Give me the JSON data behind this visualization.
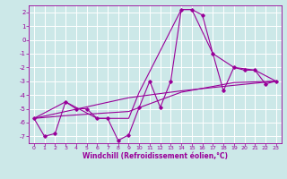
{
  "xlabel": "Windchill (Refroidissement éolien,°C)",
  "background_color": "#cce8e8",
  "grid_color": "#ffffff",
  "line_color": "#990099",
  "xlim": [
    -0.5,
    23.5
  ],
  "ylim": [
    -7.5,
    2.5
  ],
  "yticks": [
    2,
    1,
    0,
    -1,
    -2,
    -3,
    -4,
    -5,
    -6,
    -7
  ],
  "xticks": [
    0,
    1,
    2,
    3,
    4,
    5,
    6,
    7,
    8,
    9,
    10,
    11,
    12,
    13,
    14,
    15,
    16,
    17,
    18,
    19,
    20,
    21,
    22,
    23
  ],
  "main_x": [
    0,
    1,
    2,
    3,
    4,
    5,
    6,
    7,
    8,
    9,
    10,
    11,
    12,
    13,
    14,
    15,
    16,
    17,
    18,
    19,
    20,
    21,
    22,
    23
  ],
  "main_y": [
    -5.7,
    -7.0,
    -6.8,
    -4.5,
    -5.0,
    -5.0,
    -5.7,
    -5.7,
    -7.3,
    -6.9,
    -4.9,
    -3.0,
    -4.9,
    -3.0,
    2.2,
    2.2,
    1.8,
    -1.0,
    -3.7,
    -2.0,
    -2.2,
    -2.2,
    -3.2,
    -3.0
  ],
  "trend1_x": [
    0,
    3,
    6,
    9,
    10,
    14,
    15,
    17,
    19,
    21,
    23
  ],
  "trend1_y": [
    -5.7,
    -4.5,
    -5.7,
    -5.7,
    -3.8,
    2.2,
    2.2,
    -1.0,
    -2.0,
    -2.2,
    -3.0
  ],
  "trend2_x": [
    0,
    3,
    9,
    14,
    19,
    23
  ],
  "trend2_y": [
    -5.7,
    -5.2,
    -4.2,
    -3.7,
    -3.3,
    -3.0
  ],
  "trend3_x": [
    0,
    3,
    9,
    14,
    19,
    23
  ],
  "trend3_y": [
    -5.7,
    -5.5,
    -5.2,
    -3.8,
    -3.1,
    -3.0
  ]
}
